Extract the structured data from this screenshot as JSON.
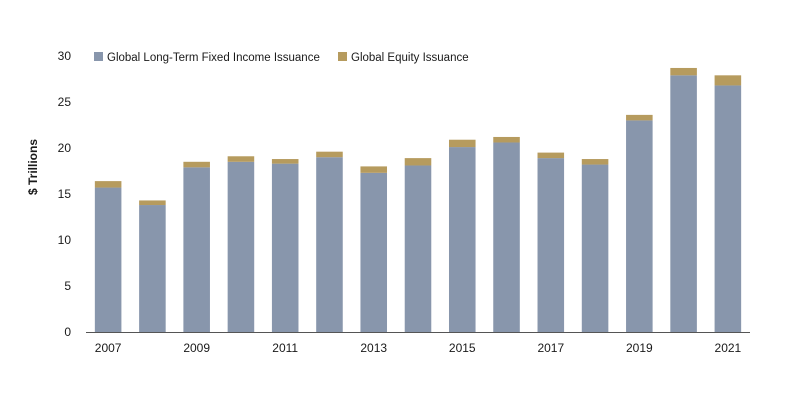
{
  "chart_data": {
    "type": "bar",
    "stacked": true,
    "title": "",
    "xlabel": "",
    "ylabel": "$ Trillions",
    "ylim": [
      0,
      30
    ],
    "yticks": [
      0,
      5,
      10,
      15,
      20,
      25,
      30
    ],
    "grid": false,
    "legend_position": "top-left",
    "categories": [
      "2007",
      "2008",
      "2009",
      "2010",
      "2011",
      "2012",
      "2013",
      "2014",
      "2015",
      "2016",
      "2017",
      "2018",
      "2019",
      "2020",
      "2021"
    ],
    "x_tick_labels": [
      "2007",
      "",
      "2009",
      "",
      "2011",
      "",
      "2013",
      "",
      "2015",
      "",
      "2017",
      "",
      "2019",
      "",
      "2021"
    ],
    "series": [
      {
        "name": "Global Long-Term Fixed Income Issuance",
        "color": "#8896ac",
        "values": [
          15.7,
          13.8,
          17.9,
          18.5,
          18.3,
          19.0,
          17.3,
          18.1,
          20.1,
          20.6,
          18.9,
          18.2,
          23.0,
          27.9,
          26.8
        ]
      },
      {
        "name": "Global Equity Issuance",
        "color": "#b69b5e",
        "values": [
          0.7,
          0.5,
          0.6,
          0.6,
          0.5,
          0.6,
          0.7,
          0.8,
          0.8,
          0.6,
          0.6,
          0.6,
          0.6,
          0.8,
          1.1
        ]
      }
    ]
  }
}
